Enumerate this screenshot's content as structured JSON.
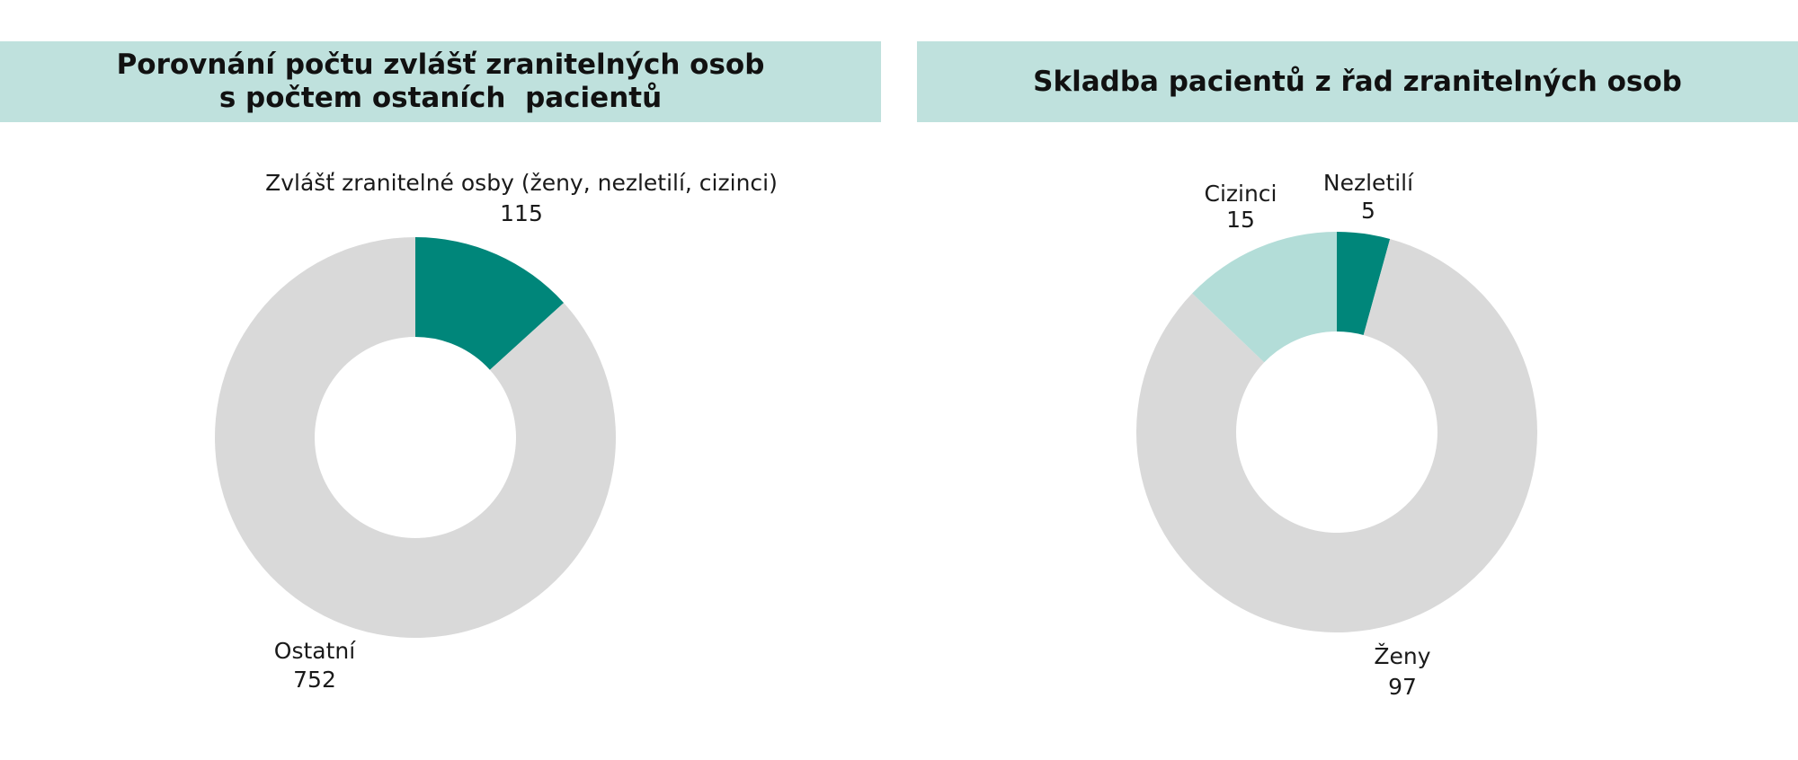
{
  "colors": {
    "banner": "#bfe1dd",
    "dark_teal": "#00867a",
    "light_teal": "#b3ddd8",
    "grey": "#d9d9d9"
  },
  "chart_data": [
    {
      "type": "pie",
      "subtype": "donut",
      "title_line1": "Porovnání počtu zvlášť zranitelných osob",
      "title_line2": "s počtem ostaních  pacientů",
      "slices": [
        {
          "label": "Zvlášť zranitelné osby (ženy, nezletilí, cizinci)",
          "value": 115,
          "display": "115",
          "color": "#00867a"
        },
        {
          "label": "Ostatní",
          "value": 752,
          "display": "752",
          "color": "#d9d9d9"
        }
      ]
    },
    {
      "type": "pie",
      "subtype": "donut",
      "title_line1": "Skladba pacientů z řad zranitelných osob",
      "slices": [
        {
          "label": "Nezletilí",
          "value": 5,
          "display": "5",
          "color": "#00867a"
        },
        {
          "label": "Ženy",
          "value": 97,
          "display": "97",
          "color": "#d9d9d9"
        },
        {
          "label": "Cizinci",
          "value": 15,
          "display": "15",
          "color": "#b3ddd8"
        }
      ]
    }
  ]
}
